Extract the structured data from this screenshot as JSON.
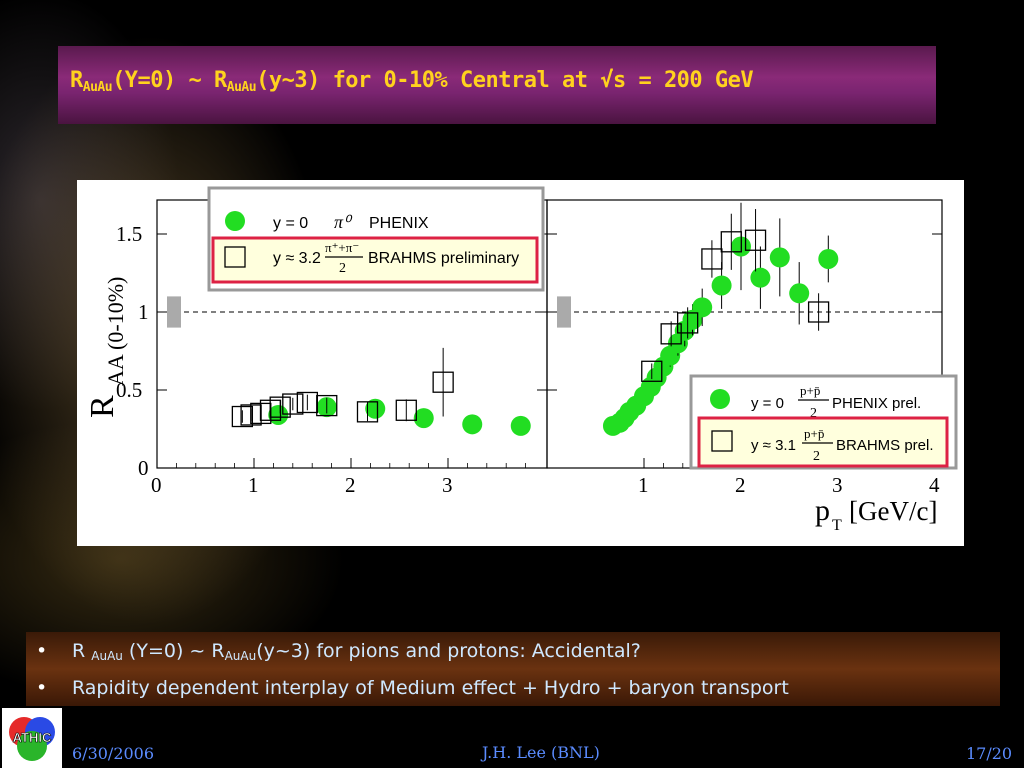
{
  "slide": {
    "title_r": "R",
    "title_sub1": "AuAu",
    "title_mid": "(Y=0) ~ R",
    "title_sub2": "AuAu",
    "title_end": "(y~3) for 0-10% Central at √s = 200 GeV",
    "bullets": [
      {
        "pre": "R ",
        "sub1": "AuAu",
        "mid": " (Y=0) ~ R",
        "sub2": "AuAu",
        "post": "(y~3) for pions and protons: Accidental?"
      },
      {
        "text": "Rapidity dependent interplay of Medium effect + Hydro + baryon transport"
      }
    ],
    "footer": {
      "date": "6/30/2006",
      "author": "J.H. Lee (BNL)",
      "page": "17/20"
    },
    "logo_text": "ATHIC"
  },
  "chart_data": [
    {
      "type": "scatter",
      "panel": "left",
      "ylabel": "R_AA (0-10%)",
      "ylim": [
        0,
        1.7
      ],
      "xlim": [
        0,
        4
      ],
      "x_ticks": [
        "0",
        "1",
        "2",
        "3"
      ],
      "y_ticks": [
        "0",
        "0.5",
        "1",
        "1.5"
      ],
      "reference_line": 1,
      "legend": {
        "entries": [
          {
            "marker": "filled-circle",
            "color": "#22dd22",
            "label_y": "y = 0",
            "label_particle": "π⁰",
            "label_exp": "PHENIX"
          },
          {
            "marker": "open-square",
            "color": "#000000",
            "label_y": "y ≈ 3.2",
            "label_num": "π⁺+π⁻",
            "label_den": "2",
            "label_exp": "BRAHMS preliminary"
          }
        ]
      },
      "series": [
        {
          "name": "y = 0 π0 PHENIX",
          "marker": "filled-circle",
          "color": "#22dd22",
          "points": [
            [
              1.25,
              0.34
            ],
            [
              1.75,
              0.39
            ],
            [
              2.25,
              0.38
            ],
            [
              2.75,
              0.32
            ],
            [
              3.25,
              0.28
            ],
            [
              3.75,
              0.27
            ]
          ]
        },
        {
          "name": "y ≈ 3.2 (π++π-)/2 BRAHMS preliminary",
          "marker": "open-square",
          "color": "#000000",
          "points": [
            [
              0.88,
              0.33
            ],
            [
              0.97,
              0.34
            ],
            [
              1.07,
              0.35
            ],
            [
              1.17,
              0.37
            ],
            [
              1.27,
              0.39
            ],
            [
              1.4,
              0.41
            ],
            [
              1.55,
              0.42
            ],
            [
              1.75,
              0.4
            ],
            [
              2.17,
              0.36
            ],
            [
              2.57,
              0.37
            ],
            [
              2.95,
              0.55
            ]
          ],
          "errors": [
            0.04,
            0.04,
            0.04,
            0.04,
            0.04,
            0.04,
            0.05,
            0.05,
            0.06,
            0.07,
            0.22
          ]
        }
      ]
    },
    {
      "type": "scatter",
      "panel": "right",
      "xlabel": "p_T [GeV/c]",
      "ylim": [
        0,
        1.7
      ],
      "xlim": [
        0,
        4
      ],
      "x_ticks": [
        "1",
        "2",
        "3",
        "4"
      ],
      "reference_line": 1,
      "legend": {
        "entries": [
          {
            "marker": "filled-circle",
            "color": "#22dd22",
            "label_y": "y = 0",
            "label_num": "p+p̄",
            "label_den": "2",
            "label_exp": "PHENIX prel."
          },
          {
            "marker": "open-square",
            "color": "#000000",
            "label_y": "y ≈ 3.1",
            "label_num": "p+p̄",
            "label_den": "2",
            "label_exp": "BRAHMS prel."
          }
        ]
      },
      "series": [
        {
          "name": "y = 0 (p+pbar)/2 PHENIX prel.",
          "marker": "filled-circle",
          "color": "#22dd22",
          "points": [
            [
              0.68,
              0.27
            ],
            [
              0.75,
              0.29
            ],
            [
              0.8,
              0.32
            ],
            [
              0.85,
              0.36
            ],
            [
              0.92,
              0.4
            ],
            [
              1.0,
              0.46
            ],
            [
              1.07,
              0.52
            ],
            [
              1.13,
              0.58
            ],
            [
              1.2,
              0.65
            ],
            [
              1.27,
              0.72
            ],
            [
              1.35,
              0.8
            ],
            [
              1.42,
              0.88
            ],
            [
              1.5,
              0.95
            ],
            [
              1.6,
              1.03
            ],
            [
              1.8,
              1.17
            ],
            [
              2.0,
              1.42
            ],
            [
              2.2,
              1.22
            ],
            [
              2.4,
              1.35
            ],
            [
              2.6,
              1.12
            ],
            [
              2.9,
              1.34
            ]
          ],
          "errors": [
            0.02,
            0.02,
            0.03,
            0.03,
            0.03,
            0.04,
            0.04,
            0.05,
            0.06,
            0.07,
            0.08,
            0.1,
            0.1,
            0.12,
            0.15,
            0.28,
            0.2,
            0.25,
            0.2,
            0.15
          ]
        },
        {
          "name": "y ≈ 3.1 (p+pbar)/2 BRAHMS prel.",
          "marker": "open-square",
          "color": "#000000",
          "points": [
            [
              1.08,
              0.62
            ],
            [
              1.28,
              0.86
            ],
            [
              1.45,
              0.93
            ],
            [
              1.7,
              1.34
            ],
            [
              1.9,
              1.45
            ],
            [
              2.15,
              1.46
            ],
            [
              2.8,
              1.0
            ]
          ],
          "errors": [
            0.05,
            0.08,
            0.1,
            0.12,
            0.18,
            0.2,
            0.12
          ]
        }
      ]
    }
  ]
}
